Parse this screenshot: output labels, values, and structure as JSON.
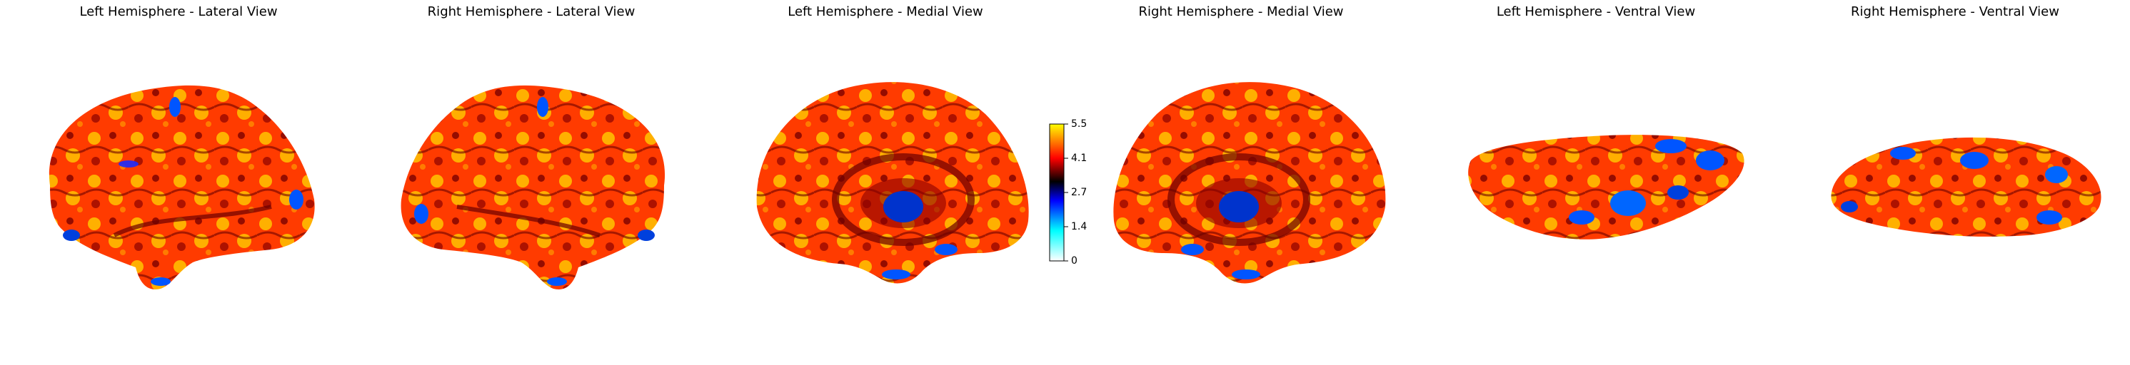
{
  "panels": [
    {
      "title": "Left Hemisphere - Lateral View"
    },
    {
      "title": "Right Hemisphere - Lateral View"
    },
    {
      "title": "Left Hemisphere - Medial View"
    },
    {
      "title": "Right Hemisphere - Medial View"
    },
    {
      "title": "Left Hemisphere - Ventral View"
    },
    {
      "title": "Right Hemisphere - Ventral View"
    }
  ],
  "colorbar": {
    "ticks": [
      "5.5",
      "4.1",
      "2.7",
      "1.4",
      "0"
    ],
    "stops": [
      "#ffffff",
      "#00ffff",
      "#0000ff",
      "#000000",
      "#ff0000",
      "#ffff00"
    ]
  },
  "colors": {
    "base": "#ff4500",
    "dark": "#6b0000",
    "hot": "#ffd700",
    "cold": "#0055ff"
  }
}
